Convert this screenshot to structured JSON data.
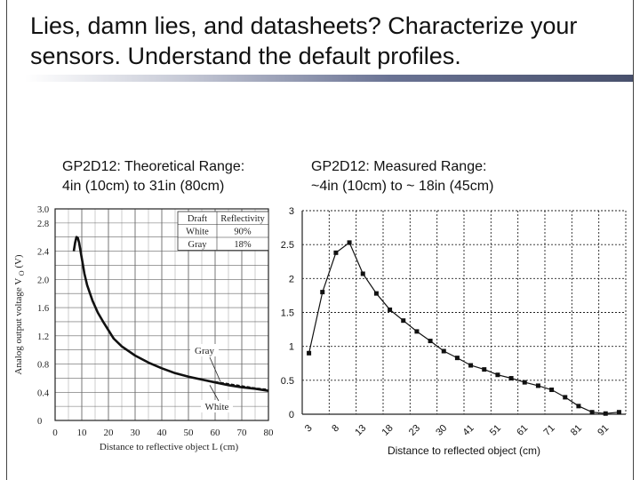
{
  "slide": {
    "title_line1": "Lies, damn lies, and datasheets?  Characterize your",
    "title_line2": "sensors.  Understand the default profiles."
  },
  "left": {
    "subtitle_line1": "GP2D12:  Theoretical Range:",
    "subtitle_line2": "4in (10cm) to 31in (80cm)"
  },
  "right": {
    "subtitle_line1": "GP2D12:  Measured Range:",
    "subtitle_line2": "~4in (10cm) to ~ 18in (45cm)"
  },
  "chart_data": [
    {
      "type": "line",
      "title": "",
      "xlabel": "Distance to reflective object L (cm)",
      "ylabel": "Analog output voltage V",
      "ylabel_subscript": "O",
      "ylabel_unit": "(V)",
      "xlim": [
        0,
        80
      ],
      "ylim": [
        0,
        3.0
      ],
      "x_ticks": [
        0,
        10,
        20,
        30,
        40,
        50,
        60,
        70,
        80
      ],
      "y_ticks": [
        "0",
        "0.4",
        "0.8",
        "1.2",
        "1.6",
        "2.0",
        "2.4",
        "2.8",
        "3.0"
      ],
      "y_tick_values": [
        0,
        0.4,
        0.8,
        1.2,
        1.6,
        2.0,
        2.4,
        2.8,
        3.0
      ],
      "grid": true,
      "legend_table": {
        "headers": [
          "Draft",
          "Reflectivity"
        ],
        "rows": [
          [
            "White",
            "90%"
          ],
          [
            "Gray",
            "18%"
          ]
        ]
      },
      "annotations": [
        "Gray",
        "White"
      ],
      "series": [
        {
          "name": "White",
          "x": [
            7,
            7.5,
            8,
            8.5,
            9,
            10,
            11,
            12,
            14,
            16,
            18,
            20,
            22,
            25,
            30,
            35,
            40,
            45,
            50,
            55,
            60,
            65,
            70,
            75,
            80
          ],
          "y": [
            2.4,
            2.52,
            2.6,
            2.59,
            2.52,
            2.3,
            2.08,
            1.92,
            1.7,
            1.53,
            1.4,
            1.28,
            1.16,
            1.05,
            0.92,
            0.82,
            0.74,
            0.67,
            0.62,
            0.58,
            0.54,
            0.5,
            0.47,
            0.45,
            0.42
          ]
        },
        {
          "name": "Gray",
          "x": [
            60,
            65,
            70,
            75,
            80
          ],
          "y": [
            0.55,
            0.52,
            0.49,
            0.46,
            0.44
          ]
        }
      ]
    },
    {
      "type": "line",
      "title": "",
      "xlabel": "Distance to reflected object (cm)",
      "ylabel": "",
      "ylim": [
        0,
        3
      ],
      "x_ticks": [
        "3",
        "8",
        "13",
        "18",
        "23",
        "30",
        "41",
        "51",
        "61",
        "71",
        "81",
        "91"
      ],
      "y_ticks": [
        "0",
        "0.5",
        "1",
        "1.5",
        "2",
        "2.5",
        "3"
      ],
      "y_tick_values": [
        0,
        0.5,
        1,
        1.5,
        2,
        2.5,
        3
      ],
      "grid": true,
      "series": [
        {
          "name": "",
          "values": [
            0.9,
            1.8,
            2.38,
            2.53,
            2.07,
            1.78,
            1.54,
            1.38,
            1.22,
            1.08,
            0.93,
            0.83,
            0.72,
            0.66,
            0.58,
            0.53,
            0.47,
            0.42,
            0.36,
            0.25,
            0.12,
            0.03,
            0.01,
            0.03
          ]
        }
      ]
    }
  ]
}
